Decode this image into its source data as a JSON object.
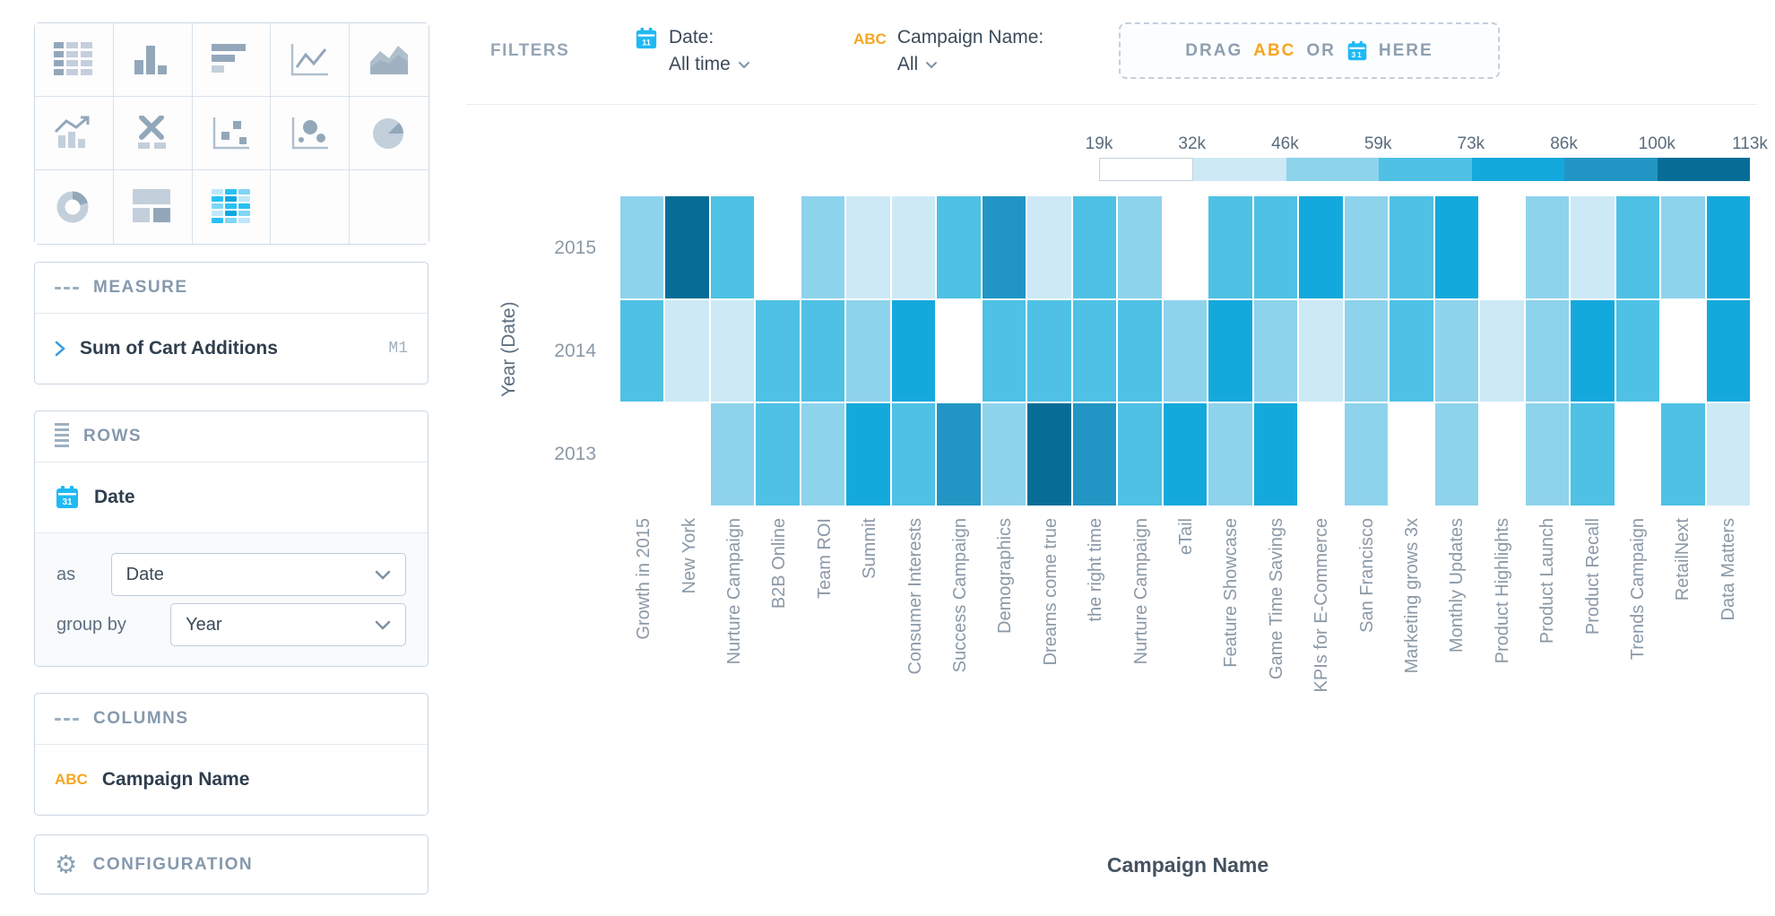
{
  "filters": {
    "label": "FILTERS",
    "date_filter": {
      "name": "Date:",
      "value": "All time"
    },
    "campaign_filter": {
      "icon": "ABC",
      "name": "Campaign Name:",
      "value": "All"
    },
    "drop_zone": {
      "drag": "DRAG",
      "abc": "ABC",
      "or": "OR",
      "here": "HERE"
    }
  },
  "panels": {
    "measure": {
      "header": "MEASURE",
      "item_label": "Sum of Cart Additions",
      "badge": "M1"
    },
    "rows": {
      "header": "ROWS",
      "item_label": "Date",
      "as_label": "as",
      "as_value": "Date",
      "group_by_label": "group by",
      "group_by_value": "Year"
    },
    "columns": {
      "header": "COLUMNS",
      "icon": "ABC",
      "item_label": "Campaign Name"
    },
    "configuration": {
      "header": "CONFIGURATION"
    }
  },
  "chart_picker": {
    "selected": "heatmap",
    "icons": [
      "table",
      "column-chart",
      "bar-chart",
      "line-chart",
      "area-chart",
      "combo-chart",
      "x-chart",
      "scatter-plot",
      "bubble-chart",
      "pie-chart",
      "donut-chart",
      "treemap",
      "heatmap",
      "empty",
      "empty"
    ]
  },
  "chart_data": {
    "type": "heatmap",
    "x_axis_label": "Campaign Name",
    "y_axis_label": "Year (Date)",
    "x_categories": [
      "Growth in 2015",
      "New York",
      "Nurture Campaign",
      "B2B Online",
      "Team ROI",
      "Summit",
      "Consumer Interests",
      "Success Campaign",
      "Demographics",
      "Dreams come true",
      "the right time",
      "Nurture Campaign",
      "eTail",
      "Feature Showcase",
      "Game Time Savings",
      "KPIs for E-Commerce",
      "San Francisco",
      "Marketing grows 3x",
      "Monthly Updates",
      "Product Highlights",
      "Product Launch",
      "Product Recall",
      "Trends Campaign",
      "RetailNext",
      "Data Matters"
    ],
    "y_categories": [
      "2015",
      "2014",
      "2013"
    ],
    "color_scale": {
      "tick_labels": [
        "19k",
        "32k",
        "46k",
        "59k",
        "73k",
        "86k",
        "100k",
        "113k"
      ],
      "segment_colors": [
        "#ffffff",
        "#cde9f6",
        "#8ed3ec",
        "#4ec1e4",
        "#14a9dc",
        "#2196c4",
        "#076d96"
      ]
    },
    "cell_levels": [
      [
        3,
        7,
        4,
        1,
        3,
        2,
        2,
        4,
        6,
        2,
        4,
        3,
        1,
        4,
        4,
        5,
        3,
        4,
        5,
        1,
        3,
        2,
        4,
        3,
        5
      ],
      [
        4,
        2,
        2,
        4,
        4,
        3,
        5,
        1,
        4,
        4,
        4,
        4,
        3,
        5,
        3,
        2,
        3,
        4,
        3,
        2,
        3,
        5,
        4,
        1,
        5
      ],
      [
        1,
        1,
        3,
        4,
        3,
        5,
        4,
        6,
        3,
        7,
        6,
        4,
        5,
        3,
        5,
        1,
        3,
        1,
        3,
        1,
        3,
        4,
        1,
        4,
        2
      ]
    ]
  },
  "colors": {
    "accent_blue": "#1fb9f4",
    "accent_orange": "#f5a623"
  }
}
